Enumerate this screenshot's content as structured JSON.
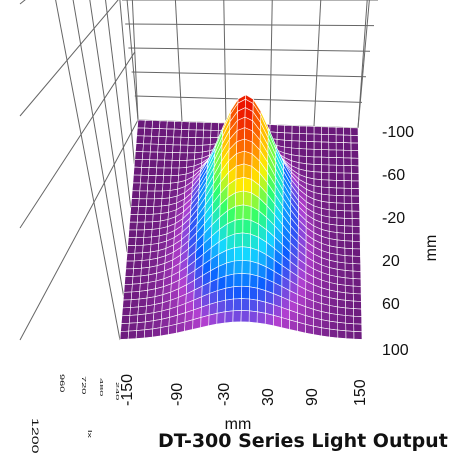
{
  "chart_data": {
    "type": "surface",
    "title": "DT-300 Series Light Output",
    "x_axis": {
      "label": "mm",
      "ticks": [
        "-150",
        "-90",
        "-30",
        "30",
        "90",
        "150"
      ],
      "range": [
        -150,
        150
      ]
    },
    "y_axis": {
      "label": "mm",
      "ticks": [
        "-100",
        "-60",
        "-20",
        "20",
        "60",
        "100"
      ],
      "range": [
        -100,
        100
      ]
    },
    "z_axis": {
      "label": "lx",
      "ticks": [
        "1200",
        "960",
        "720",
        "480",
        "240"
      ],
      "range": [
        0,
        1200
      ]
    },
    "peak": {
      "x": 0,
      "y": -30,
      "value": 1200
    },
    "colormap": [
      "#6a1a7a",
      "#b23fcf",
      "#0a5bff",
      "#14d7ff",
      "#2dff6d",
      "#fff200",
      "#ff7a00",
      "#e80000"
    ],
    "grid": true
  }
}
